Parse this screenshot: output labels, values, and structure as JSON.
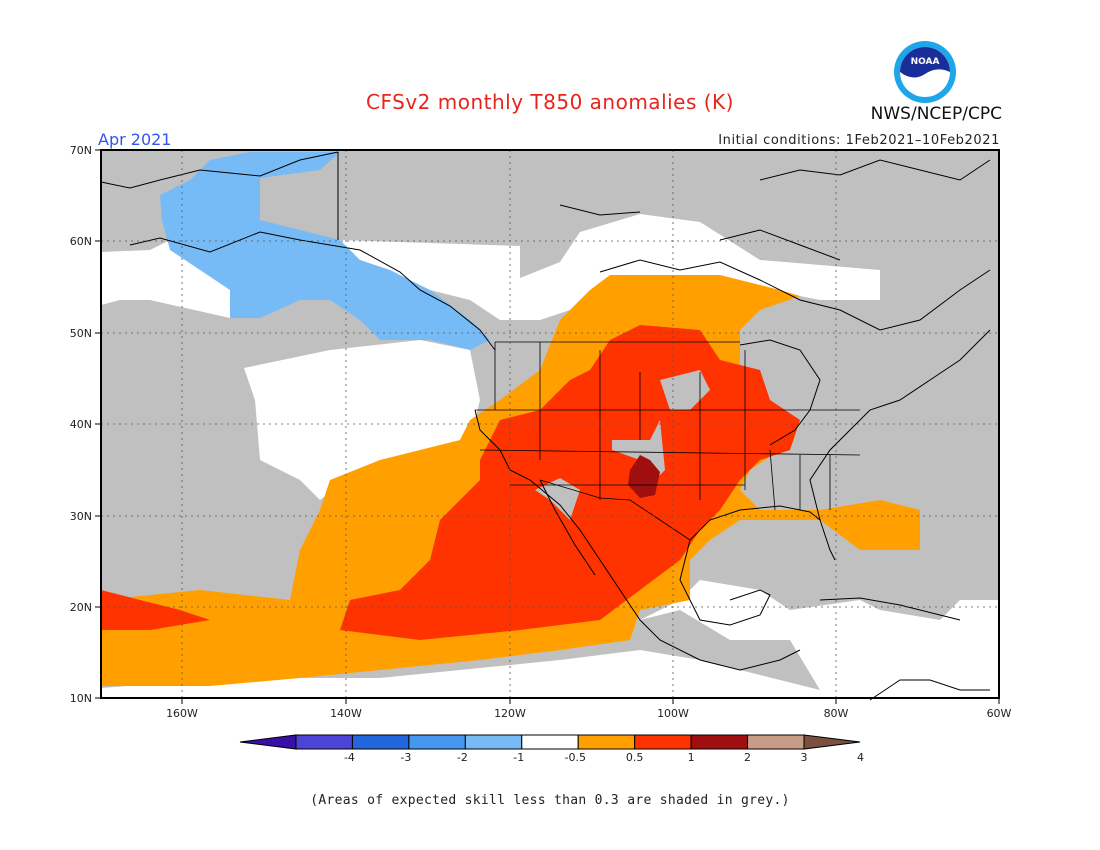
{
  "header": {
    "title": "CFSv2 monthly T850 anomalies (K)",
    "month": "Apr 2021",
    "initial_conditions": "Initial conditions: 1Feb2021–10Feb2021",
    "org": "NWS/NCEP/CPC",
    "logo_text": "NOAA"
  },
  "map": {
    "lat_labels": [
      "70N",
      "60N",
      "50N",
      "40N",
      "30N",
      "20N",
      "10N"
    ],
    "lon_labels": [
      "160W",
      "140W",
      "120W",
      "100W",
      "80W",
      "60W"
    ],
    "lat_range": [
      10,
      70
    ],
    "lon_range": [
      -170,
      -60
    ]
  },
  "colorbar": {
    "labels": [
      "-4",
      "-3",
      "-2",
      "-1",
      "-0.5",
      "0.5",
      "1",
      "2",
      "3",
      "4"
    ],
    "colors": [
      "#3a0fa8",
      "#4d44d6",
      "#2266dd",
      "#4499ee",
      "#77bbf6",
      "#ffffff",
      "#ffa000",
      "#ff3300",
      "#a00f0f",
      "#c79c88",
      "#7a5040"
    ]
  },
  "footer": {
    "note": "(Areas of expected skill less than 0.3 are shaded in grey.)"
  }
}
